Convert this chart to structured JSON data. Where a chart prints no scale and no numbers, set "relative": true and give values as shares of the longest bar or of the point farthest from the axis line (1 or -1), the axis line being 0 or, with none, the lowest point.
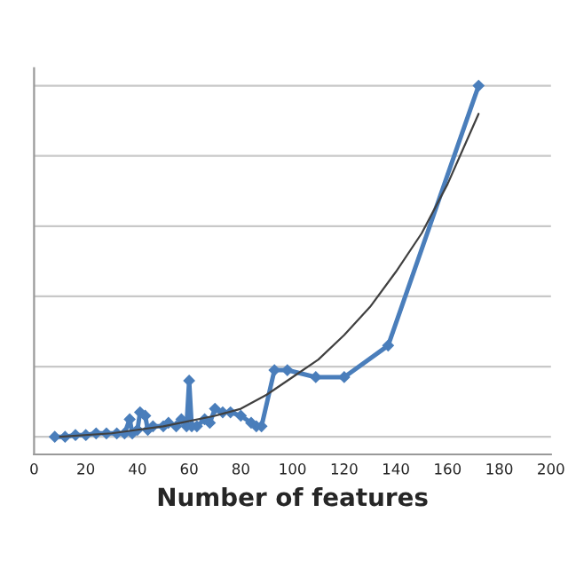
{
  "chart_data": {
    "type": "line",
    "relative": true,
    "xlabel": "Number of features",
    "xlim": [
      0,
      200
    ],
    "xticks": [
      0,
      20,
      40,
      60,
      80,
      100,
      120,
      140,
      160,
      180,
      200
    ],
    "grid": "y",
    "legend": false,
    "marker": "diamond",
    "line_style": "solid",
    "series": [
      {
        "color": "#4a7ebb",
        "x": [
          8,
          12,
          16,
          20,
          24,
          28,
          32,
          35,
          37,
          38,
          40,
          41,
          43,
          44,
          46,
          50,
          52,
          55,
          57,
          59,
          60,
          61,
          63,
          66,
          68,
          70,
          73,
          76,
          80,
          84,
          86,
          88,
          93,
          98,
          109,
          120,
          137,
          172
        ],
        "values": [
          0.0,
          0.0,
          0.005,
          0.005,
          0.01,
          0.01,
          0.01,
          0.01,
          0.05,
          0.01,
          0.02,
          0.07,
          0.06,
          0.02,
          0.03,
          0.03,
          0.04,
          0.03,
          0.05,
          0.03,
          0.16,
          0.03,
          0.03,
          0.05,
          0.04,
          0.08,
          0.07,
          0.07,
          0.06,
          0.04,
          0.03,
          0.03,
          0.19,
          0.19,
          0.17,
          0.17,
          0.26,
          1.0
        ]
      },
      {
        "type": "line",
        "color": "#404040",
        "marker": "none",
        "x": [
          10,
          30,
          50,
          70,
          80,
          90,
          100,
          110,
          120,
          130,
          140,
          150,
          160,
          172
        ],
        "values": [
          0.0,
          0.01,
          0.03,
          0.06,
          0.08,
          0.12,
          0.17,
          0.22,
          0.29,
          0.37,
          0.47,
          0.58,
          0.72,
          0.92
        ]
      }
    ]
  }
}
